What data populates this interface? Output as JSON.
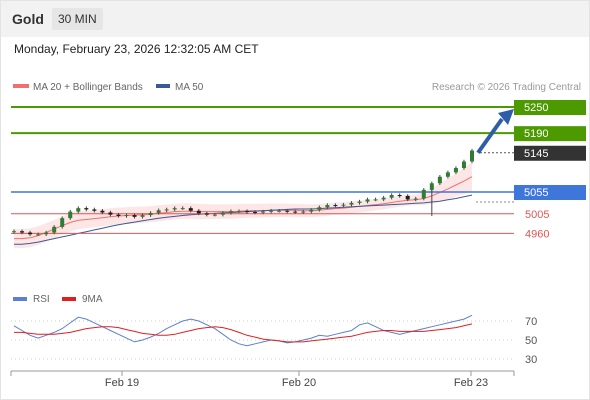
{
  "header": {
    "symbol": "Gold",
    "timeframe": "30 MIN",
    "datetime": "Monday, February 23, 2026 12:32:05 AM CET"
  },
  "legend": {
    "ma20": "MA 20 + Bollinger Bands",
    "ma50": "MA 50",
    "copyright": "Research © 2026 Trading Central"
  },
  "rsi_legend": {
    "rsi": "RSI",
    "ma9": "9MA"
  },
  "colors": {
    "resistance": "#4c9a00",
    "pivot": "#3f76d9",
    "support": "#e05555",
    "ma20": "#f07070",
    "ma50": "#3b5998",
    "bollinger": "#fde0e0",
    "rsi": "#5b7fd6",
    "rsi_ma": "#e02020",
    "candle": "#2e7d32",
    "arrow": "#2f5ea8",
    "last": "#333333"
  },
  "chart_data": {
    "type": "candlestick",
    "x_ticks": [
      "Feb 19",
      "Feb 20",
      "Feb 23"
    ],
    "y_range": [
      4900,
      5290
    ],
    "levels": [
      {
        "value": "5250",
        "kind": "resistance",
        "label": "5250"
      },
      {
        "value": "5190",
        "kind": "resistance",
        "label": "5190"
      },
      {
        "value": "5145",
        "kind": "last",
        "label": "5145"
      },
      {
        "value": "5055",
        "kind": "pivot",
        "label": "5055"
      },
      {
        "value": "5005",
        "kind": "support",
        "label": "5005"
      },
      {
        "value": "4960",
        "kind": "support",
        "label": "4960"
      }
    ],
    "last_price": 5145,
    "forecast": {
      "from": 5145,
      "to": 5250,
      "direction": "up"
    },
    "price_path": [
      4965,
      4962,
      4958,
      4958,
      4962,
      4975,
      4995,
      5010,
      5018,
      5015,
      5012,
      5008,
      5003,
      5000,
      5002,
      4998,
      5002,
      5007,
      5013,
      5015,
      5018,
      5018,
      5012,
      5006,
      5003,
      5003,
      5007,
      5011,
      5011,
      5009,
      5008,
      5010,
      5012,
      5012,
      5010,
      5009,
      5010,
      5014,
      5020,
      5025,
      5024,
      5026,
      5030,
      5033,
      5038,
      5038,
      5042,
      5048,
      5046,
      5038,
      5040,
      5060,
      5075,
      5090,
      5100,
      5110,
      5125,
      5150
    ],
    "ma20_path": [
      4948,
      4948,
      4950,
      4955,
      4962,
      4970,
      4978,
      4985,
      4990,
      4992,
      4994,
      4996,
      4998,
      5000,
      5001,
      5002,
      5003,
      5004,
      5006,
      5008,
      5010,
      5011,
      5011,
      5010,
      5010,
      5010,
      5010,
      5010,
      5011,
      5012,
      5012,
      5012,
      5013,
      5013,
      5013,
      5013,
      5012,
      5012,
      5013,
      5015,
      5017,
      5018,
      5020,
      5022,
      5024,
      5026,
      5028,
      5031,
      5034,
      5036,
      5037,
      5040,
      5046,
      5054,
      5062,
      5071,
      5080,
      5090
    ],
    "ma50_path": [
      4935,
      4935,
      4937,
      4940,
      4944,
      4948,
      4952,
      4956,
      4960,
      4964,
      4968,
      4972,
      4976,
      4980,
      4983,
      4986,
      4989,
      4992,
      4995,
      4997,
      4999,
      5001,
      5003,
      5004,
      5005,
      5006,
      5007,
      5008,
      5009,
      5010,
      5011,
      5012,
      5013,
      5014,
      5015,
      5016,
      5016,
      5016,
      5017,
      5018,
      5019,
      5020,
      5021,
      5022,
      5023,
      5024,
      5025,
      5026,
      5027,
      5028,
      5029,
      5030,
      5032,
      5034,
      5037,
      5040,
      5044,
      5048
    ],
    "rsi": {
      "levels": [
        "70",
        "50",
        "30"
      ],
      "range": [
        20,
        80
      ],
      "values": [
        65,
        60,
        55,
        52,
        55,
        58,
        62,
        68,
        74,
        72,
        68,
        64,
        60,
        56,
        52,
        48,
        50,
        53,
        57,
        62,
        66,
        70,
        72,
        70,
        66,
        62,
        56,
        50,
        46,
        44,
        46,
        48,
        50,
        49,
        47,
        48,
        50,
        52,
        55,
        54,
        56,
        58,
        60,
        66,
        68,
        64,
        60,
        58,
        56,
        58,
        60,
        62,
        64,
        66,
        68,
        70,
        72,
        76
      ],
      "ma9": [
        58,
        58,
        57,
        56,
        56,
        56,
        57,
        58,
        60,
        62,
        63,
        64,
        64,
        63,
        61,
        59,
        57,
        56,
        55,
        55,
        56,
        58,
        60,
        62,
        63,
        64,
        63,
        61,
        58,
        55,
        53,
        51,
        50,
        49,
        48,
        48,
        48,
        49,
        50,
        51,
        52,
        53,
        54,
        56,
        58,
        59,
        60,
        60,
        59,
        59,
        59,
        59,
        60,
        61,
        62,
        63,
        65,
        67
      ]
    }
  }
}
